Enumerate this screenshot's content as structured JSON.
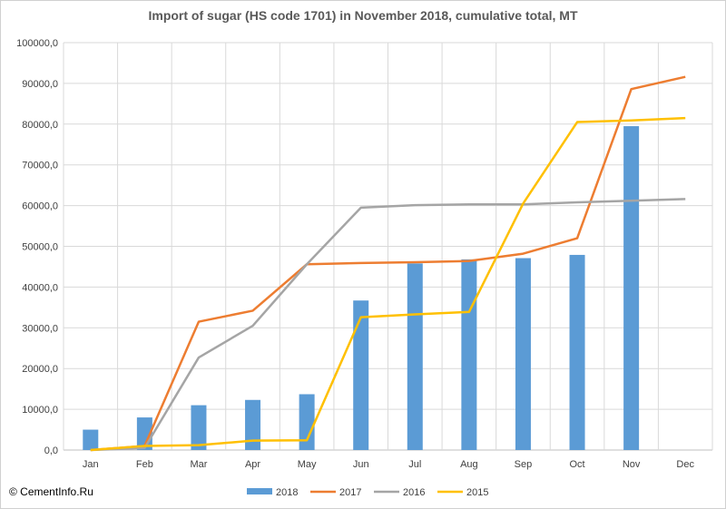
{
  "chart_data": {
    "type": "bar+line",
    "title": "Import of sugar (HS code 1701) in November 2018, cumulative total, MT",
    "xlabel": "",
    "ylabel": "",
    "categories": [
      "Jan",
      "Feb",
      "Mar",
      "Apr",
      "May",
      "Jun",
      "Jul",
      "Aug",
      "Sep",
      "Oct",
      "Nov",
      "Dec"
    ],
    "ylim": [
      0,
      100000
    ],
    "yticks": [
      0,
      10000,
      20000,
      30000,
      40000,
      50000,
      60000,
      70000,
      80000,
      90000,
      100000
    ],
    "ytick_labels": [
      "0,0",
      "10000,0",
      "20000,0",
      "30000,0",
      "40000,0",
      "50000,0",
      "60000,0",
      "70000,0",
      "80000,0",
      "90000,0",
      "100000,0"
    ],
    "grid": true,
    "legend": "bottom",
    "bar_series": [
      {
        "name": "2018",
        "color": "#5b9bd5",
        "values": [
          5000,
          8000,
          11000,
          12300,
          13700,
          36700,
          45800,
          46800,
          47100,
          47900,
          79500,
          null
        ]
      }
    ],
    "line_series": [
      {
        "name": "2017",
        "color": "#ed7d31",
        "values": [
          0,
          1000,
          31500,
          34200,
          45600,
          45900,
          46100,
          46400,
          48200,
          52000,
          88600,
          91600
        ]
      },
      {
        "name": "2016",
        "color": "#a5a5a5",
        "values": [
          0,
          500,
          22700,
          30500,
          45600,
          59500,
          60100,
          60300,
          60300,
          60800,
          61200,
          61600
        ]
      },
      {
        "name": "2015",
        "color": "#ffc000",
        "values": [
          0,
          1000,
          1200,
          2300,
          2400,
          32600,
          33300,
          33900,
          60500,
          80500,
          80900,
          81500
        ]
      }
    ]
  },
  "copyright": "© CementInfo.Ru"
}
